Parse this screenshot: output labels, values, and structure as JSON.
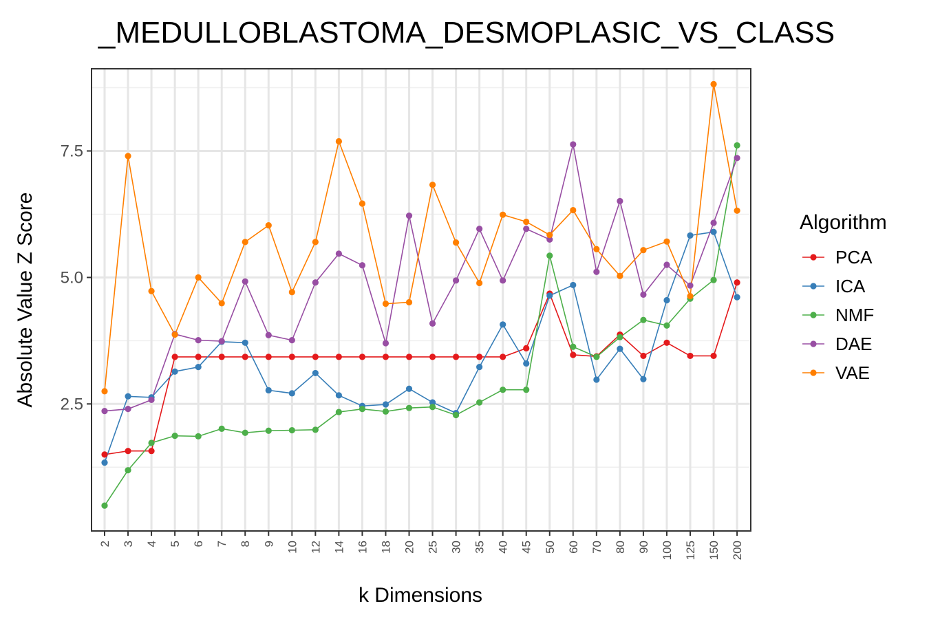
{
  "chart_data": {
    "type": "line",
    "title": "_MEDULLOBLASTOMA_DESMOPLASIC_VS_CLASS",
    "xlabel": "k Dimensions",
    "ylabel": "Absolute Value Z Score",
    "categories": [
      "2",
      "3",
      "4",
      "5",
      "6",
      "7",
      "8",
      "9",
      "10",
      "12",
      "14",
      "16",
      "18",
      "20",
      "25",
      "30",
      "35",
      "40",
      "45",
      "50",
      "60",
      "70",
      "80",
      "90",
      "100",
      "125",
      "150",
      "200"
    ],
    "ylim": [
      0,
      9.2
    ],
    "yticks": [
      "2.5",
      "5.0",
      "7.5"
    ],
    "grid": true,
    "legend": {
      "title": "Algorithm",
      "position": "right"
    },
    "series": [
      {
        "name": "PCA",
        "color": "#E41A1C",
        "values": [
          1.5,
          1.57,
          1.57,
          3.43,
          3.43,
          3.43,
          3.43,
          3.43,
          3.43,
          3.43,
          3.43,
          3.43,
          3.43,
          3.43,
          3.43,
          3.43,
          3.43,
          3.43,
          3.6,
          4.68,
          3.47,
          3.44,
          3.87,
          3.45,
          3.71,
          3.45,
          3.45,
          4.9
        ]
      },
      {
        "name": "ICA",
        "color": "#377EB8",
        "values": [
          1.34,
          2.65,
          2.63,
          3.14,
          3.23,
          3.73,
          3.71,
          2.77,
          2.71,
          3.11,
          2.67,
          2.46,
          2.49,
          2.8,
          2.53,
          2.32,
          3.23,
          4.07,
          3.3,
          4.64,
          4.85,
          2.98,
          3.59,
          2.99,
          4.55,
          5.83,
          5.9,
          4.61
        ]
      },
      {
        "name": "NMF",
        "color": "#4DAF4A",
        "values": [
          0.49,
          1.19,
          1.73,
          1.87,
          1.86,
          2.01,
          1.93,
          1.97,
          1.98,
          1.99,
          2.34,
          2.4,
          2.35,
          2.42,
          2.44,
          2.28,
          2.53,
          2.78,
          2.78,
          5.43,
          3.63,
          3.43,
          3.82,
          4.16,
          4.05,
          4.58,
          4.95,
          7.61
        ]
      },
      {
        "name": "DAE",
        "color": "#984EA3",
        "values": [
          2.36,
          2.4,
          2.58,
          3.88,
          3.76,
          3.74,
          4.92,
          3.86,
          3.76,
          4.9,
          5.47,
          5.24,
          3.7,
          6.22,
          4.09,
          4.94,
          5.96,
          4.94,
          5.96,
          5.75,
          7.63,
          5.11,
          6.51,
          4.66,
          5.25,
          4.84,
          6.08,
          7.36
        ]
      },
      {
        "name": "VAE",
        "color": "#FF7F00",
        "values": [
          2.75,
          7.4,
          4.73,
          3.87,
          5.0,
          4.49,
          5.7,
          6.03,
          4.71,
          5.7,
          7.69,
          6.46,
          4.48,
          4.51,
          6.83,
          5.69,
          4.89,
          6.24,
          6.1,
          5.84,
          6.33,
          5.56,
          5.03,
          5.54,
          5.71,
          4.63,
          8.82,
          6.32
        ]
      }
    ]
  }
}
